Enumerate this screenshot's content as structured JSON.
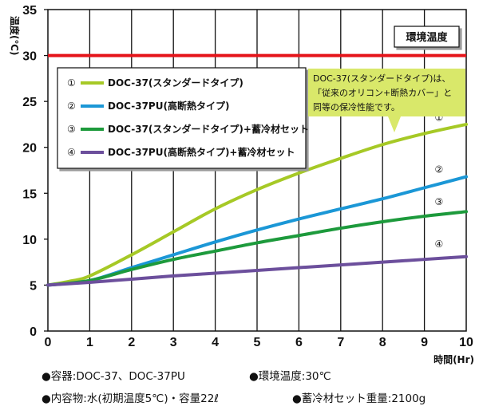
{
  "chart_data": {
    "type": "line",
    "ylabel": "温度(℃)",
    "xlabel": "時間(Hr)",
    "xlim": [
      0,
      10
    ],
    "ylim": [
      0,
      35
    ],
    "x_ticks": [
      "0",
      "1",
      "2",
      "3",
      "4",
      "5",
      "6",
      "7",
      "8",
      "9",
      "10"
    ],
    "y_ticks": [
      "0",
      "5",
      "10",
      "15",
      "20",
      "25",
      "30",
      "35"
    ],
    "grid": "vertical",
    "reference_line": {
      "label": "環境温度",
      "value": 30,
      "color": "#e5141a"
    },
    "legend": {
      "placement": "top-left"
    },
    "series": [
      {
        "marker": "①",
        "name": "DOC-37(スタンダードタイプ)",
        "color": "#a6c926",
        "x": [
          0,
          0.5,
          1,
          2,
          3,
          4,
          5,
          6,
          7,
          8,
          9,
          10
        ],
        "y": [
          5,
          5.4,
          6,
          8.3,
          10.8,
          13.3,
          15.4,
          17.2,
          18.8,
          20.3,
          21.5,
          22.5
        ]
      },
      {
        "marker": "②",
        "name": "DOC-37PU(高断熱タイプ)",
        "color": "#1b97d6",
        "x": [
          0,
          1,
          2,
          3,
          4,
          5,
          6,
          7,
          8,
          9,
          10
        ],
        "y": [
          5,
          5.5,
          6.9,
          8.3,
          9.7,
          11.0,
          12.2,
          13.3,
          14.4,
          15.6,
          16.8
        ]
      },
      {
        "marker": "③",
        "name": "DOC-37(スタンダードタイプ)+蓄冷材セット",
        "color": "#1d9a3c",
        "x": [
          0,
          1,
          2,
          3,
          4,
          5,
          6,
          7,
          8,
          9,
          10
        ],
        "y": [
          5,
          5.5,
          6.7,
          7.8,
          8.7,
          9.6,
          10.4,
          11.2,
          11.9,
          12.5,
          13.0
        ]
      },
      {
        "marker": "④",
        "name": "DOC-37PU(高断熱タイプ)+蓄冷材セット",
        "color": "#6c4f9c",
        "x": [
          0,
          1,
          2,
          3,
          4,
          5,
          6,
          7,
          8,
          9,
          10
        ],
        "y": [
          5,
          5.3,
          5.65,
          6.0,
          6.3,
          6.6,
          6.9,
          7.2,
          7.5,
          7.8,
          8.1
        ]
      }
    ],
    "annotations": [
      "DOC-37(スタンダードタイプ)は、",
      "「従来のオリコン+断熱カバー」と",
      "同等の保冷性能です。"
    ]
  },
  "footnotes": {
    "container": "●容器:DOC-37、DOC-37PU",
    "env_temp": "●環境温度:30℃",
    "contents": "●内容物:水(初期温度5℃)・容量22ℓ",
    "cold_pack": "●蓄冷材セット重量:2100g"
  }
}
